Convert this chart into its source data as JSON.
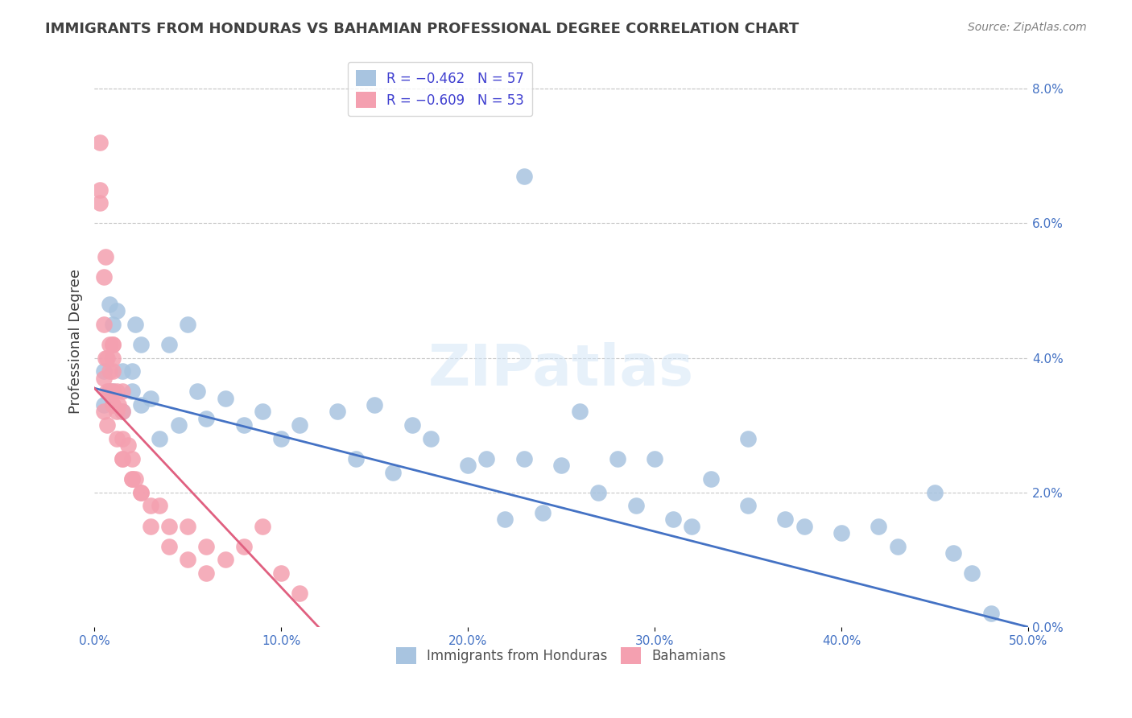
{
  "title": "IMMIGRANTS FROM HONDURAS VS BAHAMIAN PROFESSIONAL DEGREE CORRELATION CHART",
  "source": "Source: ZipAtlas.com",
  "ylabel": "Professional Degree",
  "watermark": "ZIPatlas",
  "legend_blue_r": "R = −0.462",
  "legend_blue_n": "N = 57",
  "legend_pink_r": "R = −0.609",
  "legend_pink_n": "N = 53",
  "blue_color": "#a8c4e0",
  "pink_color": "#f4a0b0",
  "blue_line_color": "#4472c4",
  "pink_line_color": "#e06080",
  "title_color": "#404040",
  "source_color": "#808080",
  "axis_label_color": "#4472c4",
  "grid_color": "#c8c8c8",
  "blue_scatter_x": [
    0.5,
    0.5,
    0.8,
    1.0,
    1.0,
    1.2,
    1.5,
    1.5,
    2.0,
    2.0,
    2.2,
    2.5,
    2.5,
    3.0,
    3.5,
    4.0,
    4.5,
    5.0,
    5.5,
    6.0,
    7.0,
    8.0,
    9.0,
    10.0,
    11.0,
    13.0,
    14.0,
    15.0,
    16.0,
    17.0,
    18.0,
    20.0,
    21.0,
    22.0,
    23.0,
    24.0,
    25.0,
    26.0,
    27.0,
    28.0,
    29.0,
    30.0,
    31.0,
    32.0,
    33.0,
    35.0,
    37.0,
    38.0,
    40.0,
    42.0,
    43.0,
    45.0,
    46.0,
    47.0,
    48.0,
    35.0,
    23.0
  ],
  "blue_scatter_y": [
    3.8,
    3.3,
    4.8,
    4.5,
    3.5,
    4.7,
    3.2,
    3.8,
    3.5,
    3.8,
    4.5,
    3.3,
    4.2,
    3.4,
    2.8,
    4.2,
    3.0,
    4.5,
    3.5,
    3.1,
    3.4,
    3.0,
    3.2,
    2.8,
    3.0,
    3.2,
    2.5,
    3.3,
    2.3,
    3.0,
    2.8,
    2.4,
    2.5,
    1.6,
    2.5,
    1.7,
    2.4,
    3.2,
    2.0,
    2.5,
    1.8,
    2.5,
    1.6,
    1.5,
    2.2,
    1.8,
    1.6,
    1.5,
    1.4,
    1.5,
    1.2,
    2.0,
    1.1,
    0.8,
    0.2,
    2.8,
    6.7
  ],
  "pink_scatter_x": [
    0.3,
    0.3,
    0.5,
    0.5,
    0.6,
    0.7,
    0.7,
    0.8,
    0.8,
    0.8,
    1.0,
    1.0,
    1.0,
    1.0,
    1.0,
    1.2,
    1.2,
    1.3,
    1.5,
    1.5,
    1.5,
    1.5,
    1.8,
    2.0,
    2.0,
    2.2,
    2.5,
    3.0,
    3.5,
    4.0,
    5.0,
    6.0,
    7.0,
    8.0,
    9.0,
    10.0,
    11.0,
    1.0,
    0.8,
    0.5,
    0.5,
    0.7,
    1.2,
    1.5,
    2.0,
    2.5,
    3.0,
    4.0,
    5.0,
    6.0,
    0.3,
    0.6,
    1.0
  ],
  "pink_scatter_y": [
    7.2,
    6.3,
    5.2,
    4.5,
    4.0,
    4.0,
    3.5,
    4.2,
    3.8,
    3.5,
    4.2,
    4.0,
    3.8,
    3.5,
    3.3,
    3.5,
    3.2,
    3.3,
    3.5,
    3.2,
    2.8,
    2.5,
    2.7,
    2.5,
    2.2,
    2.2,
    2.0,
    1.8,
    1.8,
    1.5,
    1.5,
    1.2,
    1.0,
    1.2,
    1.5,
    0.8,
    0.5,
    3.3,
    3.5,
    3.7,
    3.2,
    3.0,
    2.8,
    2.5,
    2.2,
    2.0,
    1.5,
    1.2,
    1.0,
    0.8,
    6.5,
    5.5,
    4.2
  ],
  "blue_trend_x": [
    0,
    50
  ],
  "blue_trend_y_start": 3.55,
  "blue_trend_y_end": 0.0,
  "pink_trend_x": [
    0,
    12
  ],
  "pink_trend_y_start": 3.55,
  "pink_trend_y_end": 0.0,
  "xmin": 0.0,
  "xmax": 50.0,
  "ymin": 0.0,
  "ymax": 8.5,
  "xtick_positions": [
    0,
    10,
    20,
    30,
    40,
    50
  ],
  "ytick_positions_right": [
    0,
    2,
    4,
    6,
    8
  ],
  "background_color": "#ffffff"
}
